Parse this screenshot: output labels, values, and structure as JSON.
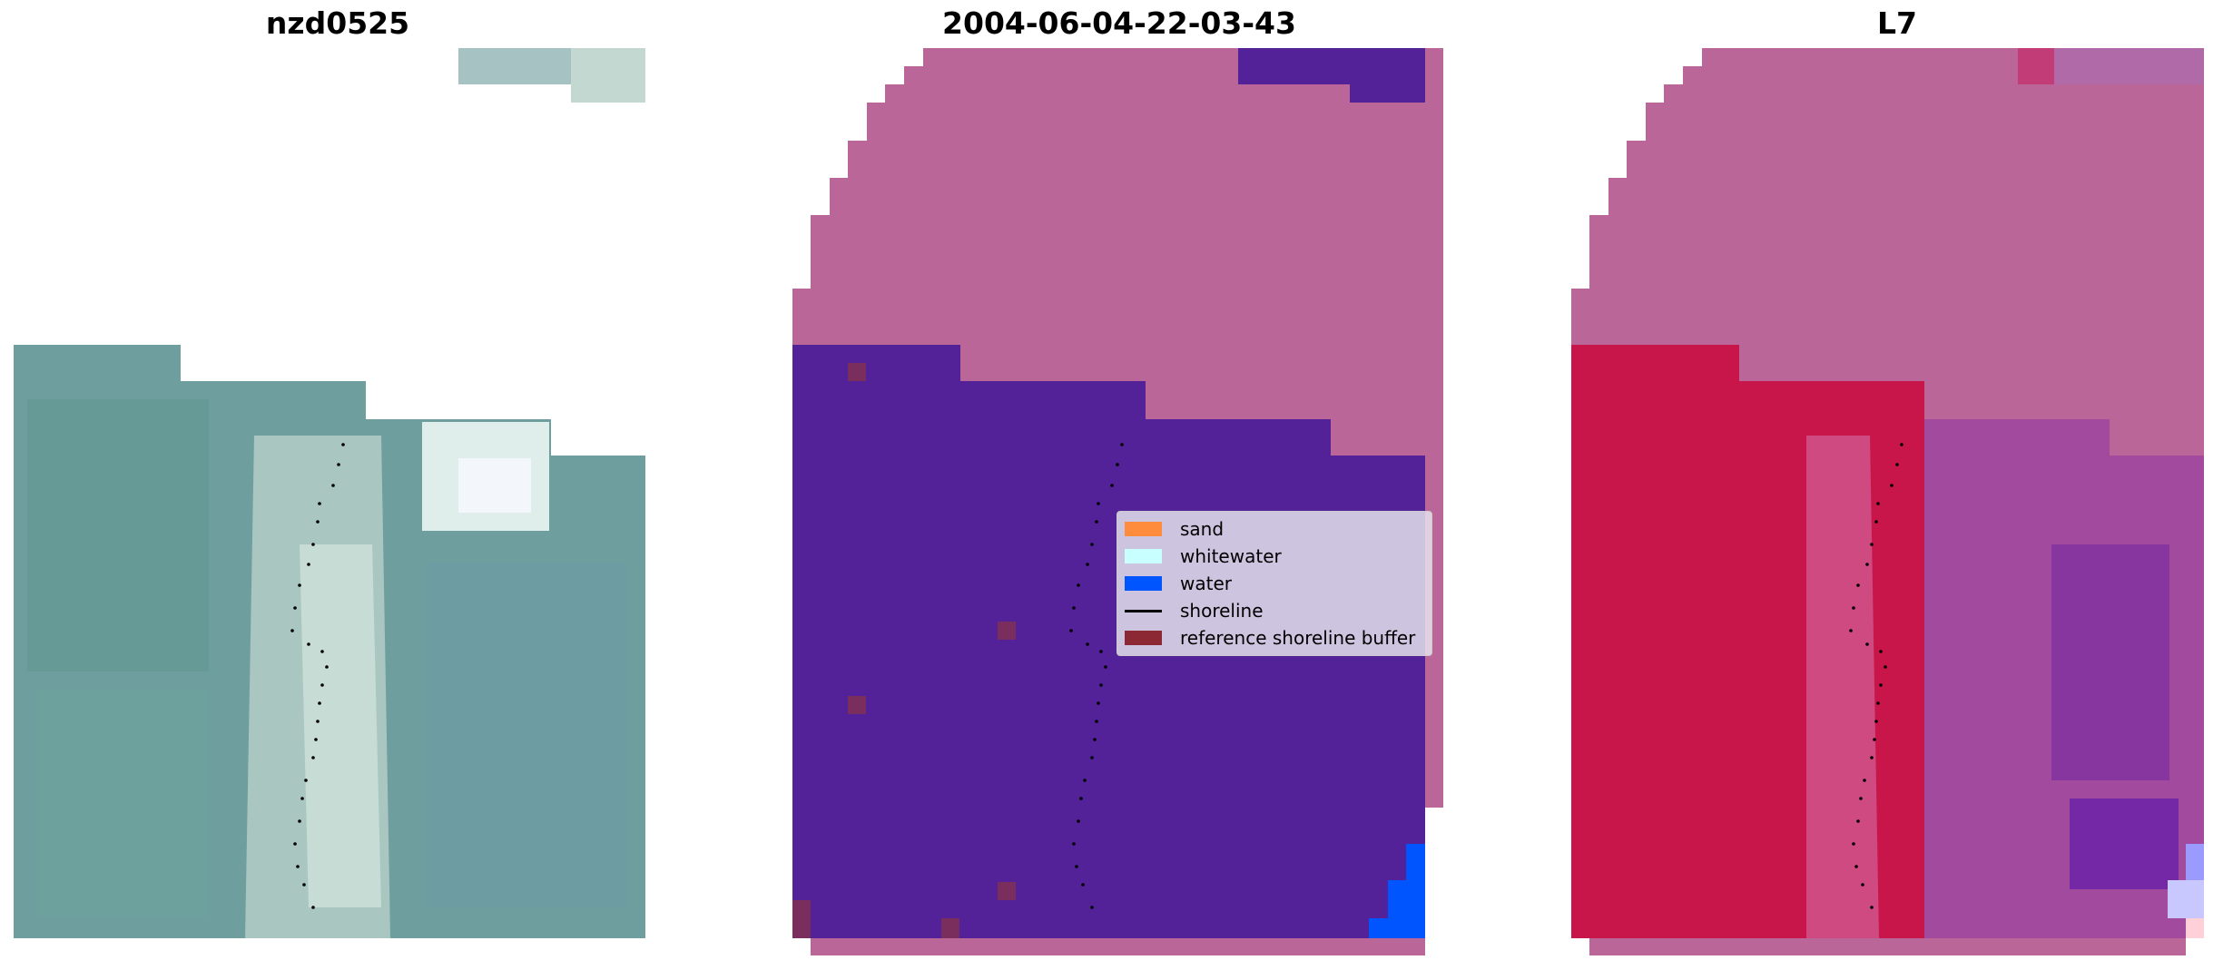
{
  "panels": [
    {
      "title": "nzd0525"
    },
    {
      "title": "2004-06-04-22-03-43"
    },
    {
      "title": "L7"
    }
  ],
  "legend": {
    "items": [
      {
        "label": "sand",
        "color": "#ff8c3c",
        "kind": "patch"
      },
      {
        "label": "whitewater",
        "color": "#c8ffff",
        "kind": "patch"
      },
      {
        "label": "water",
        "color": "#0055ff",
        "kind": "patch"
      },
      {
        "label": "shoreline",
        "color": "#000000",
        "kind": "line"
      },
      {
        "label": "reference shoreline buffer",
        "color": "#8c2833",
        "kind": "patch"
      }
    ]
  },
  "colors": {
    "land_mask": "#bb6698",
    "class_other": "#532198",
    "water_class": "#0055ff",
    "buffer": "#7a2e5e",
    "index_red": "#c8164a",
    "index_purple": "#8a3a9a"
  }
}
